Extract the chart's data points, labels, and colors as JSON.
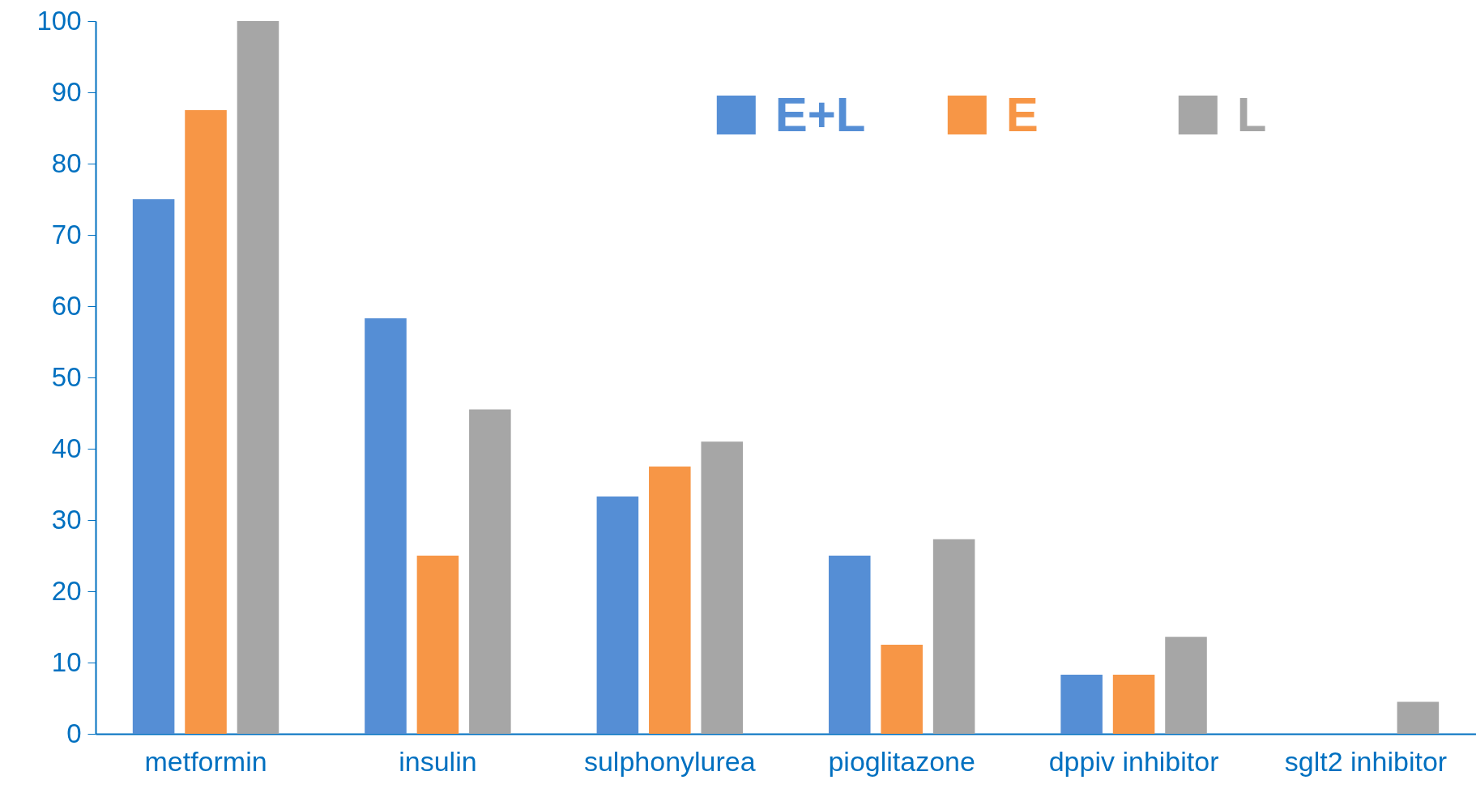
{
  "chart_data": {
    "type": "bar",
    "categories": [
      "metformin",
      "insulin",
      "sulphonylurea",
      "pioglitazone",
      "dppiv inhibitor",
      "sglt2 inhibitor"
    ],
    "series": [
      {
        "name": "E+L",
        "color": "#558ed5",
        "values": [
          75,
          58.3,
          33.3,
          25,
          8.3,
          0
        ]
      },
      {
        "name": "E",
        "color": "#f79646",
        "values": [
          87.5,
          25,
          37.5,
          12.5,
          8.3,
          0
        ]
      },
      {
        "name": "L",
        "color": "#a6a6a6",
        "values": [
          100,
          45.5,
          41,
          27.3,
          13.6,
          4.5
        ]
      }
    ],
    "ylim": [
      0,
      100
    ],
    "yticks": [
      0,
      10,
      20,
      30,
      40,
      50,
      60,
      70,
      80,
      90,
      100
    ],
    "grid": false,
    "legend": "top right"
  }
}
